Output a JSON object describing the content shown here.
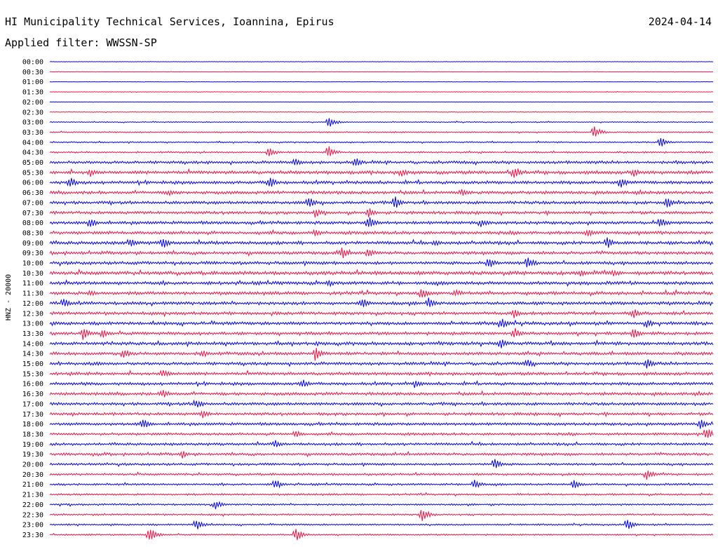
{
  "header": {
    "station": "HI Municipality Technical Services, Ioannina, Epirus",
    "date": "2024-04-14",
    "filter": "Applied filter: WWSSN-SP"
  },
  "chart_data": {
    "type": "line",
    "title": "HI Municipality Technical Services, Ioannina, Epirus",
    "ylabel": "HNZ - 20000",
    "row_labels": [
      "00:00",
      "00:30",
      "01:00",
      "01:30",
      "02:00",
      "02:30",
      "03:00",
      "03:30",
      "04:00",
      "04:30",
      "05:00",
      "05:30",
      "06:00",
      "06:30",
      "07:00",
      "07:30",
      "08:00",
      "08:30",
      "09:00",
      "09:30",
      "10:00",
      "10:30",
      "11:00",
      "11:30",
      "12:00",
      "12:30",
      "13:00",
      "13:30",
      "14:00",
      "14:30",
      "15:00",
      "15:30",
      "16:00",
      "16:30",
      "17:00",
      "17:30",
      "18:00",
      "18:30",
      "19:00",
      "19:30",
      "20:00",
      "20:30",
      "21:00",
      "21:30",
      "22:00",
      "22:30",
      "23:00",
      "23:30"
    ],
    "colors": [
      "#0000ee",
      "#ee1144"
    ],
    "noise_level": [
      0.3,
      0.3,
      0.3,
      0.4,
      0.3,
      0.5,
      0.8,
      1.0,
      1.0,
      1.3,
      2.2,
      2.6,
      2.4,
      2.5,
      2.3,
      2.3,
      2.4,
      2.5,
      2.5,
      2.4,
      2.4,
      2.8,
      2.6,
      2.6,
      2.5,
      2.4,
      2.5,
      2.4,
      2.5,
      2.4,
      2.4,
      2.4,
      2.3,
      2.4,
      2.2,
      2.2,
      2.2,
      2.0,
      2.0,
      2.0,
      1.8,
      1.7,
      1.6,
      1.5,
      1.4,
      1.3,
      1.3,
      1.2
    ],
    "events": [
      {
        "row": 6,
        "t": 0.42,
        "amp": 9
      },
      {
        "row": 7,
        "t": 0.82,
        "amp": 10
      },
      {
        "row": 8,
        "t": 0.92,
        "amp": 8
      },
      {
        "row": 9,
        "t": 0.33,
        "amp": 8
      },
      {
        "row": 9,
        "t": 0.42,
        "amp": 10
      },
      {
        "row": 10,
        "t": 0.37,
        "amp": 7
      },
      {
        "row": 10,
        "t": 0.46,
        "amp": 8
      },
      {
        "row": 11,
        "t": 0.06,
        "amp": 8
      },
      {
        "row": 11,
        "t": 0.53,
        "amp": 8
      },
      {
        "row": 11,
        "t": 0.7,
        "amp": 10
      },
      {
        "row": 11,
        "t": 0.88,
        "amp": 7
      },
      {
        "row": 12,
        "t": 0.03,
        "amp": 9
      },
      {
        "row": 12,
        "t": 0.33,
        "amp": 10
      },
      {
        "row": 12,
        "t": 0.86,
        "amp": 9
      },
      {
        "row": 13,
        "t": 0.18,
        "amp": 6
      },
      {
        "row": 13,
        "t": 0.62,
        "amp": 6
      },
      {
        "row": 14,
        "t": 0.39,
        "amp": 9
      },
      {
        "row": 14,
        "t": 0.52,
        "amp": 10
      },
      {
        "row": 14,
        "t": 0.93,
        "amp": 10
      },
      {
        "row": 15,
        "t": 0.4,
        "amp": 8
      },
      {
        "row": 15,
        "t": 0.48,
        "amp": 9
      },
      {
        "row": 16,
        "t": 0.06,
        "amp": 9
      },
      {
        "row": 16,
        "t": 0.48,
        "amp": 10
      },
      {
        "row": 16,
        "t": 0.65,
        "amp": 7
      },
      {
        "row": 16,
        "t": 0.92,
        "amp": 10
      },
      {
        "row": 17,
        "t": 0.4,
        "amp": 7
      },
      {
        "row": 17,
        "t": 0.81,
        "amp": 8
      },
      {
        "row": 18,
        "t": 0.12,
        "amp": 8
      },
      {
        "row": 18,
        "t": 0.17,
        "amp": 9
      },
      {
        "row": 18,
        "t": 0.58,
        "amp": 5
      },
      {
        "row": 18,
        "t": 0.84,
        "amp": 9
      },
      {
        "row": 19,
        "t": 0.44,
        "amp": 10
      },
      {
        "row": 19,
        "t": 0.48,
        "amp": 8
      },
      {
        "row": 20,
        "t": 0.66,
        "amp": 10
      },
      {
        "row": 20,
        "t": 0.72,
        "amp": 11
      },
      {
        "row": 21,
        "t": 0.8,
        "amp": 6
      },
      {
        "row": 21,
        "t": 0.85,
        "amp": 6
      },
      {
        "row": 22,
        "t": 0.42,
        "amp": 6
      },
      {
        "row": 23,
        "t": 0.06,
        "amp": 6
      },
      {
        "row": 23,
        "t": 0.56,
        "amp": 10
      },
      {
        "row": 23,
        "t": 0.61,
        "amp": 7
      },
      {
        "row": 24,
        "t": 0.02,
        "amp": 8
      },
      {
        "row": 24,
        "t": 0.47,
        "amp": 9
      },
      {
        "row": 24,
        "t": 0.57,
        "amp": 9
      },
      {
        "row": 25,
        "t": 0.7,
        "amp": 7
      },
      {
        "row": 25,
        "t": 0.88,
        "amp": 8
      },
      {
        "row": 26,
        "t": 0.68,
        "amp": 9
      },
      {
        "row": 26,
        "t": 0.9,
        "amp": 7
      },
      {
        "row": 27,
        "t": 0.05,
        "amp": 10
      },
      {
        "row": 27,
        "t": 0.08,
        "amp": 7
      },
      {
        "row": 27,
        "t": 0.7,
        "amp": 10
      },
      {
        "row": 27,
        "t": 0.88,
        "amp": 10
      },
      {
        "row": 28,
        "t": 0.68,
        "amp": 8
      },
      {
        "row": 29,
        "t": 0.11,
        "amp": 9
      },
      {
        "row": 29,
        "t": 0.23,
        "amp": 8
      },
      {
        "row": 29,
        "t": 0.4,
        "amp": 12
      },
      {
        "row": 30,
        "t": 0.72,
        "amp": 7
      },
      {
        "row": 30,
        "t": 0.9,
        "amp": 8
      },
      {
        "row": 31,
        "t": 0.17,
        "amp": 8
      },
      {
        "row": 32,
        "t": 0.38,
        "amp": 8
      },
      {
        "row": 32,
        "t": 0.55,
        "amp": 7
      },
      {
        "row": 33,
        "t": 0.17,
        "amp": 8
      },
      {
        "row": 34,
        "t": 0.22,
        "amp": 9
      },
      {
        "row": 35,
        "t": 0.23,
        "amp": 7
      },
      {
        "row": 36,
        "t": 0.14,
        "amp": 9
      },
      {
        "row": 36,
        "t": 0.98,
        "amp": 8
      },
      {
        "row": 37,
        "t": 0.37,
        "amp": 7
      },
      {
        "row": 37,
        "t": 0.99,
        "amp": 10
      },
      {
        "row": 38,
        "t": 0.34,
        "amp": 6
      },
      {
        "row": 39,
        "t": 0.2,
        "amp": 6
      },
      {
        "row": 40,
        "t": 0.67,
        "amp": 9
      },
      {
        "row": 41,
        "t": 0.9,
        "amp": 8
      },
      {
        "row": 42,
        "t": 0.34,
        "amp": 8
      },
      {
        "row": 42,
        "t": 0.64,
        "amp": 9
      },
      {
        "row": 42,
        "t": 0.79,
        "amp": 8
      },
      {
        "row": 44,
        "t": 0.25,
        "amp": 7
      },
      {
        "row": 45,
        "t": 0.56,
        "amp": 12
      },
      {
        "row": 46,
        "t": 0.22,
        "amp": 9
      },
      {
        "row": 46,
        "t": 0.87,
        "amp": 9
      },
      {
        "row": 47,
        "t": 0.15,
        "amp": 11
      },
      {
        "row": 47,
        "t": 0.37,
        "amp": 12
      }
    ]
  }
}
